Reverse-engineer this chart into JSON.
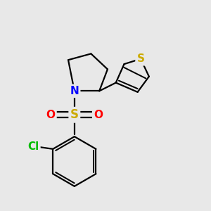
{
  "bg_color": "#e8e8e8",
  "atom_colors": {
    "N": "#0000ff",
    "S_sulfonyl": "#ccaa00",
    "S_thiophene": "#ccaa00",
    "O": "#ff0000",
    "Cl": "#00bb00",
    "C": "#000000"
  },
  "bond_color": "#000000",
  "bond_width": 1.6,
  "font_size_atoms": 10,
  "fig_width": 3.0,
  "fig_height": 3.0,
  "dpi": 100
}
